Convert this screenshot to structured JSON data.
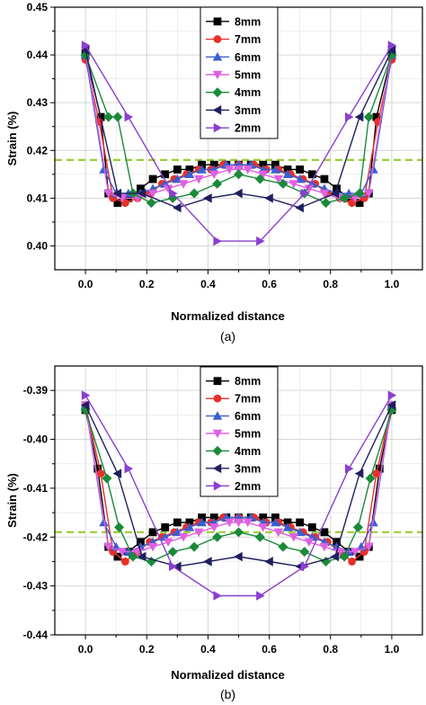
{
  "chart_data": [
    {
      "type": "line",
      "panel_label": "(a)",
      "xlabel": "Normalized distance",
      "ylabel": "Strain (%)",
      "xlim": [
        -0.1,
        1.1
      ],
      "ylim": [
        0.395,
        0.45
      ],
      "x_ticks": [
        "0.0",
        "0.2",
        "0.4",
        "0.6",
        "0.8",
        "1.0"
      ],
      "y_ticks": [
        "0.40",
        "0.41",
        "0.42",
        "0.43",
        "0.44",
        "0.45"
      ],
      "grid": true,
      "legend_position": "top-center",
      "reference_line": {
        "y": 0.418,
        "color": "#9acd32",
        "style": "dashed"
      },
      "series": [
        {
          "name": "8mm",
          "color": "#000000",
          "marker": "square",
          "x": [
            0,
            0.05,
            0.075,
            0.105,
            0.14,
            0.18,
            0.22,
            0.26,
            0.3,
            0.34,
            0.38,
            0.42,
            0.46,
            0.5,
            0.54,
            0.58,
            0.62,
            0.66,
            0.7,
            0.74,
            0.78,
            0.82,
            0.86,
            0.895,
            0.925,
            0.95,
            1.0
          ],
          "y": [
            0.44,
            0.427,
            0.411,
            0.409,
            0.41,
            0.412,
            0.414,
            0.415,
            0.416,
            0.416,
            0.417,
            0.417,
            0.417,
            0.417,
            0.417,
            0.417,
            0.417,
            0.416,
            0.416,
            0.415,
            0.414,
            0.412,
            0.41,
            0.409,
            0.411,
            0.427,
            0.44
          ]
        },
        {
          "name": "7mm",
          "color": "#e8302a",
          "marker": "circle",
          "x": [
            0,
            0.045,
            0.09,
            0.13,
            0.17,
            0.21,
            0.25,
            0.29,
            0.33,
            0.37,
            0.41,
            0.45,
            0.5,
            0.55,
            0.59,
            0.63,
            0.67,
            0.71,
            0.75,
            0.79,
            0.83,
            0.87,
            0.91,
            0.955,
            1.0
          ],
          "y": [
            0.439,
            0.426,
            0.41,
            0.409,
            0.41,
            0.411,
            0.413,
            0.414,
            0.415,
            0.416,
            0.416,
            0.417,
            0.417,
            0.417,
            0.416,
            0.416,
            0.415,
            0.414,
            0.413,
            0.411,
            0.41,
            0.409,
            0.41,
            0.426,
            0.439
          ]
        },
        {
          "name": "6mm",
          "color": "#3a5fcd",
          "marker": "triangle-up",
          "x": [
            0,
            0.06,
            0.1,
            0.14,
            0.18,
            0.22,
            0.26,
            0.3,
            0.34,
            0.38,
            0.42,
            0.46,
            0.5,
            0.54,
            0.58,
            0.62,
            0.66,
            0.7,
            0.74,
            0.78,
            0.82,
            0.86,
            0.9,
            0.94,
            1.0
          ],
          "y": [
            0.44,
            0.416,
            0.411,
            0.411,
            0.411,
            0.412,
            0.413,
            0.414,
            0.415,
            0.416,
            0.416,
            0.417,
            0.417,
            0.417,
            0.416,
            0.416,
            0.415,
            0.414,
            0.413,
            0.412,
            0.411,
            0.411,
            0.411,
            0.416,
            0.44
          ]
        },
        {
          "name": "5mm",
          "color": "#e060e0",
          "marker": "triangle-down",
          "x": [
            0,
            0.075,
            0.12,
            0.17,
            0.22,
            0.27,
            0.32,
            0.37,
            0.42,
            0.47,
            0.5,
            0.53,
            0.58,
            0.63,
            0.68,
            0.73,
            0.78,
            0.83,
            0.88,
            0.925,
            1.0
          ],
          "y": [
            0.441,
            0.411,
            0.41,
            0.41,
            0.411,
            0.412,
            0.413,
            0.414,
            0.415,
            0.416,
            0.416,
            0.416,
            0.415,
            0.414,
            0.413,
            0.412,
            0.411,
            0.41,
            0.41,
            0.411,
            0.441
          ]
        },
        {
          "name": "4mm",
          "color": "#1a8a3a",
          "marker": "diamond",
          "x": [
            0,
            0.075,
            0.105,
            0.155,
            0.215,
            0.285,
            0.355,
            0.43,
            0.5,
            0.57,
            0.645,
            0.715,
            0.785,
            0.845,
            0.895,
            0.925,
            1.0
          ],
          "y": [
            0.44,
            0.427,
            0.427,
            0.411,
            0.409,
            0.41,
            0.411,
            0.413,
            0.415,
            0.414,
            0.413,
            0.411,
            0.409,
            0.41,
            0.411,
            0.427,
            0.44
          ]
        },
        {
          "name": "3mm",
          "color": "#1f1f5f",
          "marker": "triangle-left",
          "x": [
            0,
            0.105,
            0.185,
            0.3,
            0.4,
            0.5,
            0.6,
            0.7,
            0.815,
            0.895,
            1.0
          ],
          "y": [
            0.441,
            0.411,
            0.411,
            0.408,
            0.41,
            0.411,
            0.41,
            0.408,
            0.411,
            0.427,
            0.441
          ]
        },
        {
          "name": "2mm",
          "color": "#8a3fd0",
          "marker": "triangle-right",
          "x": [
            0,
            0.14,
            0.285,
            0.43,
            0.57,
            0.715,
            0.86,
            1.0
          ],
          "y": [
            0.442,
            0.427,
            0.411,
            0.401,
            0.401,
            0.411,
            0.427,
            0.442
          ]
        }
      ]
    },
    {
      "type": "line",
      "panel_label": "(b)",
      "xlabel": "Normalized distance",
      "ylabel": "Strain (%)",
      "xlim": [
        -0.1,
        1.1
      ],
      "ylim": [
        -0.44,
        -0.385
      ],
      "x_ticks": [
        "0.0",
        "0.2",
        "0.4",
        "0.6",
        "0.8",
        "1.0"
      ],
      "y_ticks": [
        "-0.44",
        "-0.43",
        "-0.42",
        "-0.41",
        "-0.40",
        "-0.39"
      ],
      "grid": true,
      "legend_position": "top-center",
      "reference_line": {
        "y": -0.419,
        "color": "#9acd32",
        "style": "dashed"
      },
      "series": [
        {
          "name": "8mm",
          "color": "#000000",
          "marker": "square",
          "x": [
            0,
            0.04,
            0.075,
            0.105,
            0.14,
            0.18,
            0.22,
            0.26,
            0.3,
            0.34,
            0.38,
            0.42,
            0.46,
            0.5,
            0.54,
            0.58,
            0.62,
            0.66,
            0.7,
            0.74,
            0.78,
            0.82,
            0.86,
            0.895,
            0.925,
            0.96,
            1.0
          ],
          "y": [
            -0.394,
            -0.406,
            -0.422,
            -0.424,
            -0.423,
            -0.421,
            -0.419,
            -0.418,
            -0.417,
            -0.417,
            -0.416,
            -0.416,
            -0.416,
            -0.416,
            -0.416,
            -0.416,
            -0.416,
            -0.417,
            -0.417,
            -0.418,
            -0.419,
            -0.421,
            -0.423,
            -0.424,
            -0.422,
            -0.406,
            -0.394
          ]
        },
        {
          "name": "7mm",
          "color": "#e8302a",
          "marker": "circle",
          "x": [
            0,
            0.05,
            0.09,
            0.13,
            0.17,
            0.21,
            0.25,
            0.29,
            0.33,
            0.37,
            0.41,
            0.45,
            0.5,
            0.55,
            0.59,
            0.63,
            0.67,
            0.71,
            0.75,
            0.79,
            0.83,
            0.87,
            0.91,
            0.95,
            1.0
          ],
          "y": [
            -0.393,
            -0.407,
            -0.423,
            -0.425,
            -0.423,
            -0.421,
            -0.42,
            -0.419,
            -0.418,
            -0.417,
            -0.417,
            -0.416,
            -0.416,
            -0.416,
            -0.417,
            -0.417,
            -0.418,
            -0.419,
            -0.42,
            -0.421,
            -0.423,
            -0.425,
            -0.423,
            -0.407,
            -0.393
          ]
        },
        {
          "name": "6mm",
          "color": "#3a5fcd",
          "marker": "triangle-up",
          "x": [
            0,
            0.06,
            0.1,
            0.14,
            0.18,
            0.22,
            0.26,
            0.3,
            0.34,
            0.38,
            0.42,
            0.46,
            0.5,
            0.54,
            0.58,
            0.62,
            0.66,
            0.7,
            0.74,
            0.78,
            0.82,
            0.86,
            0.9,
            0.94,
            1.0
          ],
          "y": [
            -0.393,
            -0.417,
            -0.422,
            -0.423,
            -0.422,
            -0.421,
            -0.42,
            -0.419,
            -0.418,
            -0.417,
            -0.417,
            -0.416,
            -0.416,
            -0.416,
            -0.417,
            -0.417,
            -0.418,
            -0.419,
            -0.42,
            -0.421,
            -0.422,
            -0.423,
            -0.422,
            -0.417,
            -0.393
          ]
        },
        {
          "name": "5mm",
          "color": "#e060e0",
          "marker": "triangle-down",
          "x": [
            0,
            0.075,
            0.12,
            0.17,
            0.22,
            0.27,
            0.32,
            0.37,
            0.42,
            0.47,
            0.5,
            0.53,
            0.58,
            0.63,
            0.68,
            0.73,
            0.78,
            0.83,
            0.88,
            0.925,
            1.0
          ],
          "y": [
            -0.393,
            -0.422,
            -0.423,
            -0.423,
            -0.422,
            -0.421,
            -0.42,
            -0.419,
            -0.418,
            -0.417,
            -0.417,
            -0.417,
            -0.418,
            -0.419,
            -0.42,
            -0.421,
            -0.422,
            -0.423,
            -0.423,
            -0.422,
            -0.393
          ]
        },
        {
          "name": "4mm",
          "color": "#1a8a3a",
          "marker": "diamond",
          "x": [
            0,
            0.07,
            0.11,
            0.155,
            0.215,
            0.285,
            0.355,
            0.43,
            0.5,
            0.57,
            0.645,
            0.715,
            0.785,
            0.845,
            0.89,
            0.93,
            1.0
          ],
          "y": [
            -0.394,
            -0.408,
            -0.418,
            -0.424,
            -0.425,
            -0.423,
            -0.422,
            -0.42,
            -0.419,
            -0.42,
            -0.422,
            -0.423,
            -0.425,
            -0.424,
            -0.418,
            -0.408,
            -0.394
          ]
        },
        {
          "name": "3mm",
          "color": "#1f1f5f",
          "marker": "triangle-left",
          "x": [
            0,
            0.105,
            0.185,
            0.3,
            0.4,
            0.5,
            0.6,
            0.7,
            0.815,
            0.895,
            1.0
          ],
          "y": [
            -0.393,
            -0.407,
            -0.424,
            -0.426,
            -0.425,
            -0.424,
            -0.425,
            -0.426,
            -0.424,
            -0.407,
            -0.393
          ]
        },
        {
          "name": "2mm",
          "color": "#8a3fd0",
          "marker": "triangle-right",
          "x": [
            0,
            0.14,
            0.285,
            0.43,
            0.57,
            0.715,
            0.86,
            1.0
          ],
          "y": [
            -0.391,
            -0.406,
            -0.426,
            -0.432,
            -0.432,
            -0.426,
            -0.406,
            -0.391
          ]
        }
      ]
    }
  ]
}
